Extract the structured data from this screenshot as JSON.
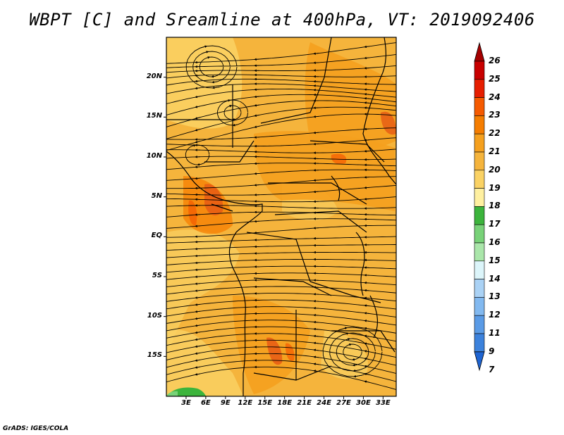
{
  "title": "WBPT [C] and Sreamline at 400hPa, VT: 2019092406",
  "credit": "GrADS: IGES/COLA",
  "lat_labels": [
    "20N",
    "15N",
    "10N",
    "5N",
    "EQ",
    "5S",
    "10S",
    "15S"
  ],
  "lat_values": [
    20,
    15,
    10,
    5,
    0,
    -5,
    -10,
    -15
  ],
  "lon_labels": [
    "3E",
    "6E",
    "9E",
    "12E",
    "15E",
    "18E",
    "21E",
    "24E",
    "27E",
    "30E",
    "33E"
  ],
  "lon_values": [
    3,
    6,
    9,
    12,
    15,
    18,
    21,
    24,
    27,
    30,
    33
  ],
  "domain": {
    "lon_min": 0,
    "lon_max": 35,
    "lat_min": -20,
    "lat_max": 25
  },
  "colorbar": {
    "labels": [
      "26",
      "25",
      "24",
      "23",
      "22",
      "21",
      "20",
      "19",
      "18",
      "17",
      "16",
      "15",
      "14",
      "13",
      "12",
      "11",
      "9",
      "7"
    ],
    "colors": [
      "#a50000",
      "#c80000",
      "#e61e00",
      "#f55a00",
      "#f57d00",
      "#f5a01e",
      "#f5b43c",
      "#fad264",
      "#fff0a0",
      "#3cb43c",
      "#78d278",
      "#aae6aa",
      "#dcf5fa",
      "#aad2f5",
      "#82b9f0",
      "#5a9be6",
      "#3c82dc",
      "#1e64d2"
    ]
  },
  "colors": {
    "field_base": "#f5b43c",
    "field_warm": "#f57d00",
    "field_hot": "#e65a14",
    "field_cool": "#fad264",
    "field_green": "#3cb43c",
    "streamline": "#000000"
  }
}
